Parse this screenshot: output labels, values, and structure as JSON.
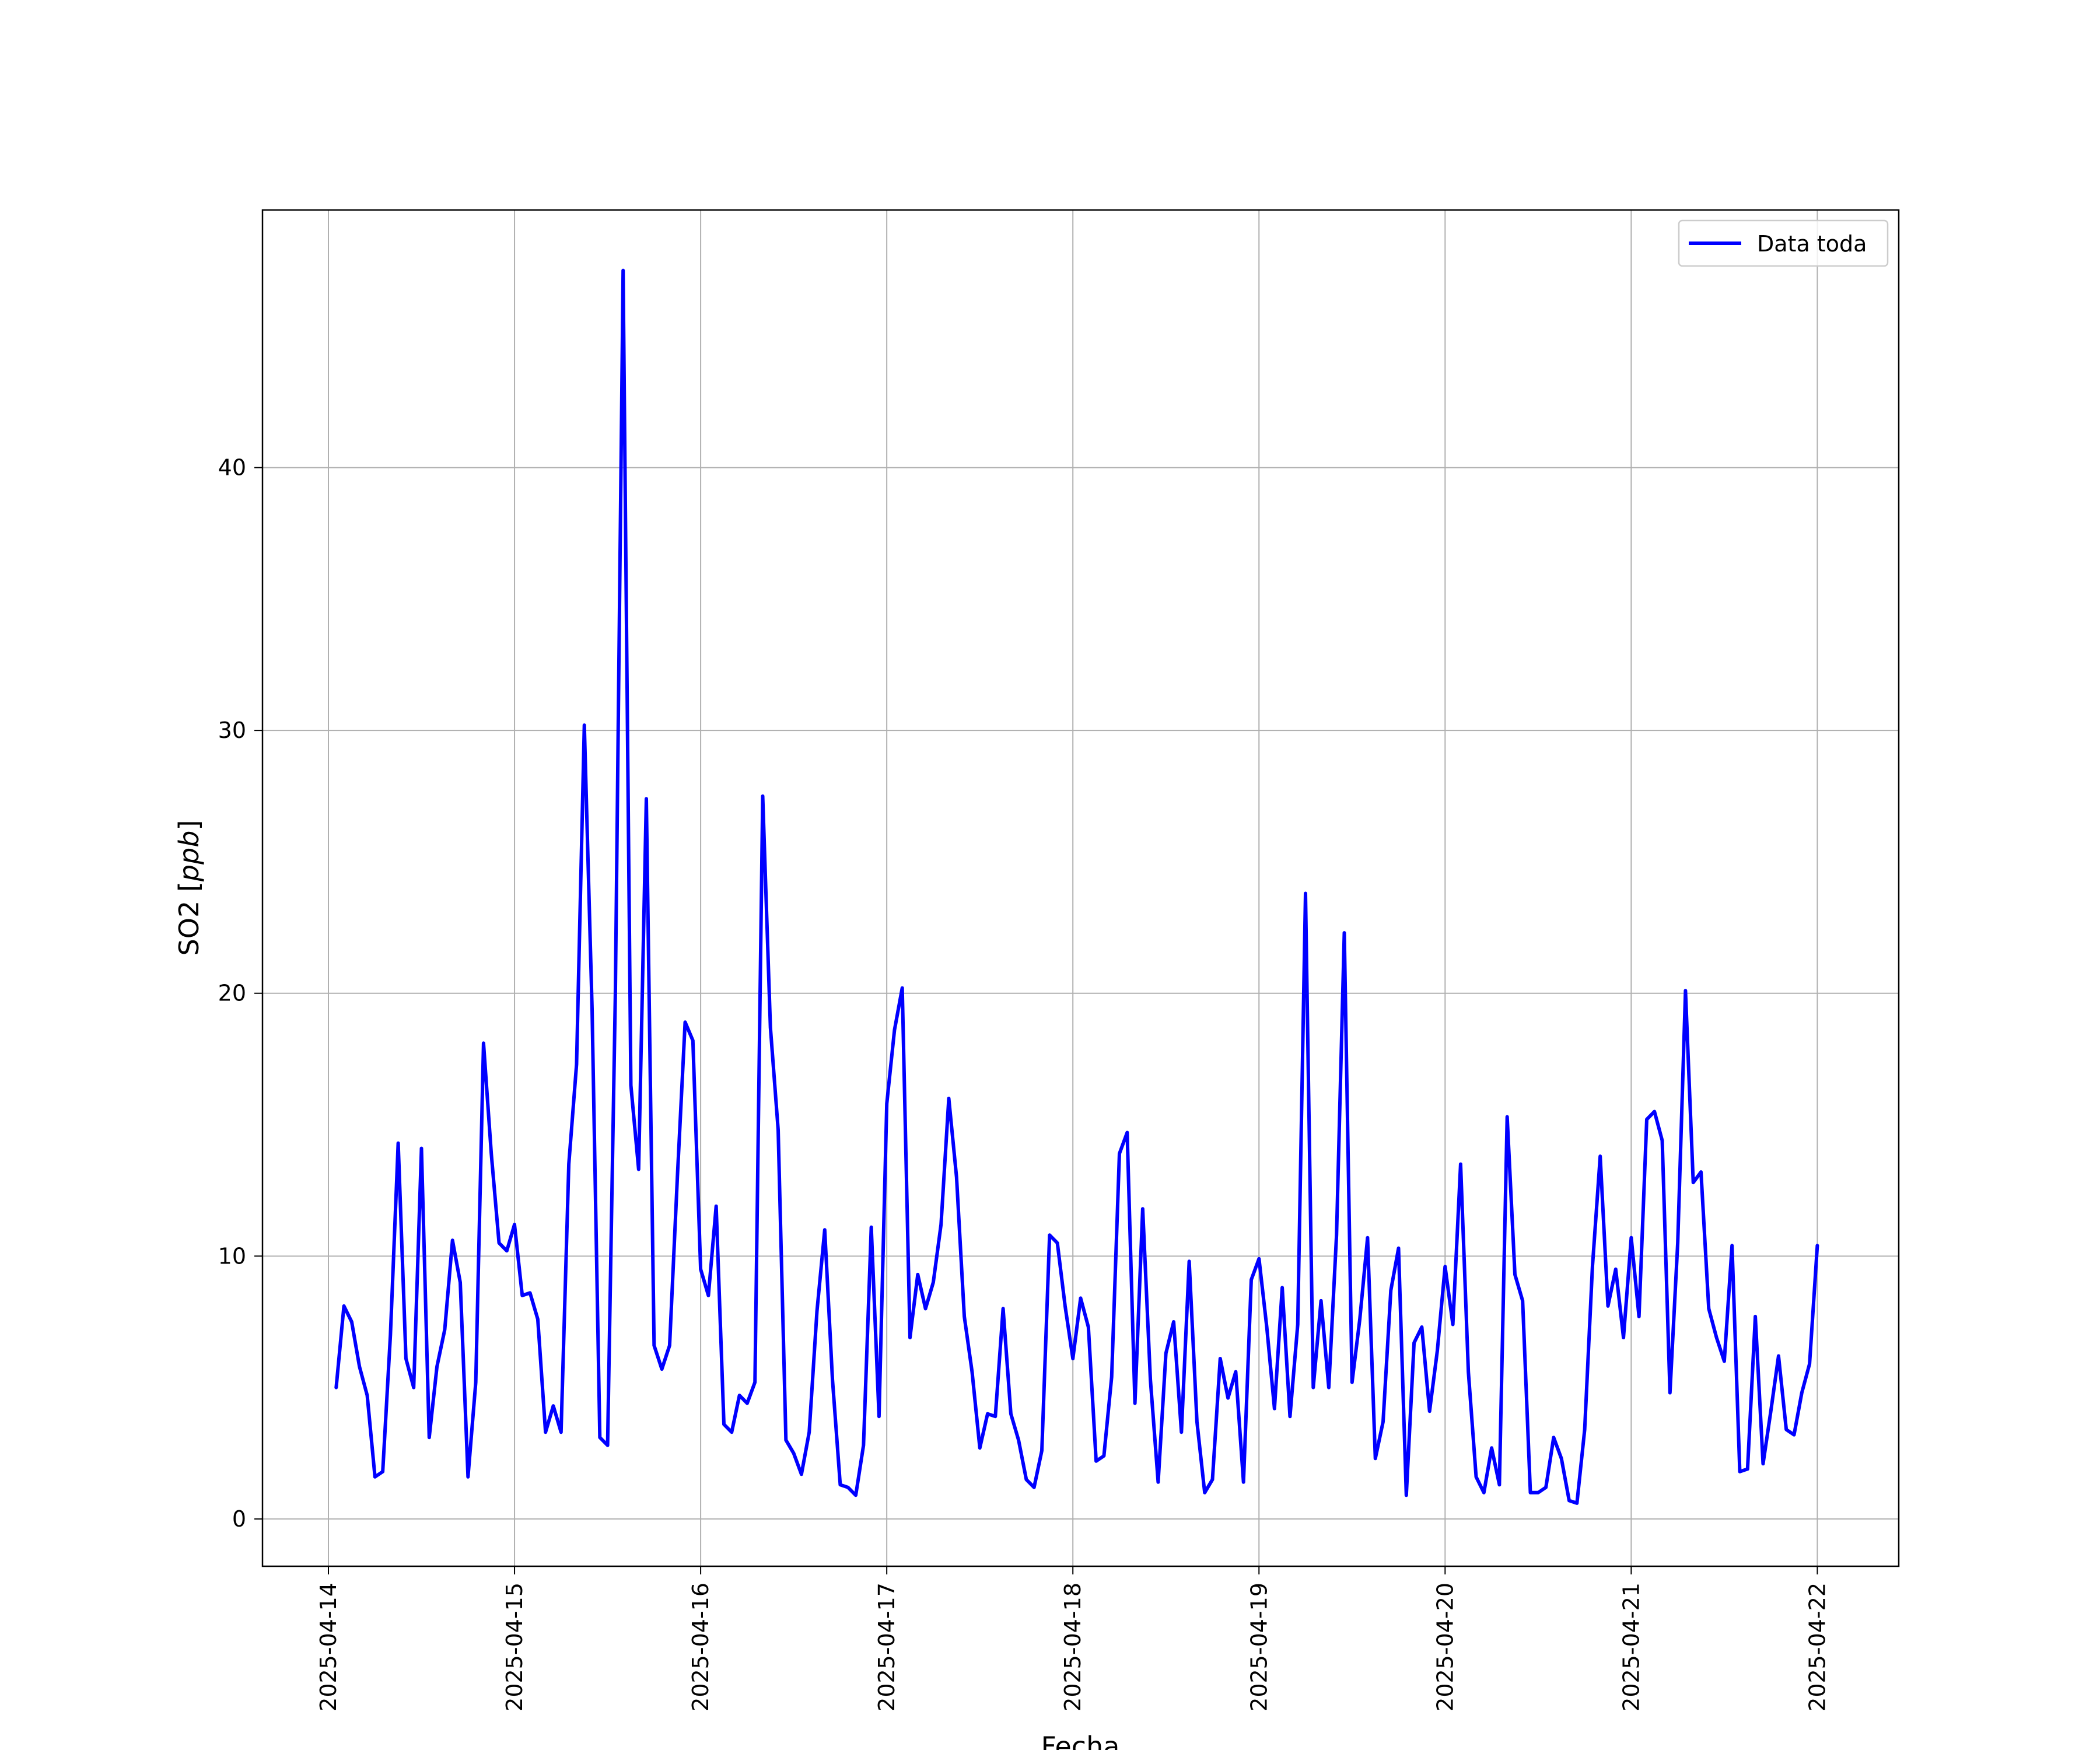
{
  "chart_data": {
    "type": "line",
    "xlabel": "Fecha",
    "ylabel_main": "SO2 [",
    "ylabel_unit": "ppb",
    "ylabel_close": "]",
    "xlim": [
      "2025-04-13T15:30",
      "2025-04-22T10:30"
    ],
    "ylim": [
      -1.8,
      49.8
    ],
    "x_ticks": [
      "2025-04-14",
      "2025-04-15",
      "2025-04-16",
      "2025-04-17",
      "2025-04-18",
      "2025-04-19",
      "2025-04-20",
      "2025-04-21",
      "2025-04-22"
    ],
    "y_ticks": [
      0,
      10,
      20,
      30,
      40
    ],
    "grid": true,
    "legend_position": "top-right",
    "line_color": "#0000ff",
    "series": [
      {
        "name": "Data toda",
        "color": "#0000ff",
        "x": [
          "2025-04-14T01:00",
          "2025-04-14T02:00",
          "2025-04-14T03:00",
          "2025-04-14T04:00",
          "2025-04-14T05:00",
          "2025-04-14T06:00",
          "2025-04-14T07:00",
          "2025-04-14T08:00",
          "2025-04-14T09:00",
          "2025-04-14T10:00",
          "2025-04-14T11:00",
          "2025-04-14T12:00",
          "2025-04-14T13:00",
          "2025-04-14T14:00",
          "2025-04-14T15:00",
          "2025-04-14T16:00",
          "2025-04-14T17:00",
          "2025-04-14T18:00",
          "2025-04-14T19:00",
          "2025-04-14T20:00",
          "2025-04-14T21:00",
          "2025-04-14T22:00",
          "2025-04-14T23:00",
          "2025-04-15T00:00",
          "2025-04-15T01:00",
          "2025-04-15T02:00",
          "2025-04-15T03:00",
          "2025-04-15T04:00",
          "2025-04-15T05:00",
          "2025-04-15T06:00",
          "2025-04-15T07:00",
          "2025-04-15T08:00",
          "2025-04-15T09:00",
          "2025-04-15T10:00",
          "2025-04-15T11:00",
          "2025-04-15T12:00",
          "2025-04-15T13:00",
          "2025-04-15T14:00",
          "2025-04-15T15:00",
          "2025-04-15T16:00",
          "2025-04-15T17:00",
          "2025-04-15T18:00",
          "2025-04-15T19:00",
          "2025-04-15T20:00",
          "2025-04-15T21:00",
          "2025-04-15T22:00",
          "2025-04-15T23:00",
          "2025-04-16T00:00",
          "2025-04-16T01:00",
          "2025-04-16T02:00",
          "2025-04-16T03:00",
          "2025-04-16T04:00",
          "2025-04-16T05:00",
          "2025-04-16T06:00",
          "2025-04-16T07:00",
          "2025-04-16T08:00",
          "2025-04-16T09:00",
          "2025-04-16T10:00",
          "2025-04-16T11:00",
          "2025-04-16T12:00",
          "2025-04-16T13:00",
          "2025-04-16T14:00",
          "2025-04-16T15:00",
          "2025-04-16T16:00",
          "2025-04-16T17:00",
          "2025-04-16T18:00",
          "2025-04-16T19:00",
          "2025-04-16T20:00",
          "2025-04-16T21:00",
          "2025-04-16T22:00",
          "2025-04-16T23:00",
          "2025-04-17T00:00",
          "2025-04-17T01:00",
          "2025-04-17T02:00",
          "2025-04-17T03:00",
          "2025-04-17T04:00",
          "2025-04-17T05:00",
          "2025-04-17T06:00",
          "2025-04-17T07:00",
          "2025-04-17T08:00",
          "2025-04-17T09:00",
          "2025-04-17T10:00",
          "2025-04-17T11:00",
          "2025-04-17T12:00",
          "2025-04-17T13:00",
          "2025-04-17T14:00",
          "2025-04-17T15:00",
          "2025-04-17T16:00",
          "2025-04-17T17:00",
          "2025-04-17T18:00",
          "2025-04-17T19:00",
          "2025-04-17T20:00",
          "2025-04-17T21:00",
          "2025-04-17T22:00",
          "2025-04-17T23:00",
          "2025-04-18T00:00",
          "2025-04-18T01:00",
          "2025-04-18T02:00",
          "2025-04-18T03:00",
          "2025-04-18T04:00",
          "2025-04-18T05:00",
          "2025-04-18T06:00",
          "2025-04-18T07:00",
          "2025-04-18T08:00",
          "2025-04-18T09:00",
          "2025-04-18T10:00",
          "2025-04-18T11:00",
          "2025-04-18T12:00",
          "2025-04-18T13:00",
          "2025-04-18T14:00",
          "2025-04-18T15:00",
          "2025-04-18T16:00",
          "2025-04-18T17:00",
          "2025-04-18T18:00",
          "2025-04-18T19:00",
          "2025-04-18T20:00",
          "2025-04-18T21:00",
          "2025-04-18T22:00",
          "2025-04-18T23:00",
          "2025-04-19T00:00",
          "2025-04-19T01:00",
          "2025-04-19T02:00",
          "2025-04-19T03:00",
          "2025-04-19T04:00",
          "2025-04-19T05:00",
          "2025-04-19T06:00",
          "2025-04-19T07:00",
          "2025-04-19T08:00",
          "2025-04-19T09:00",
          "2025-04-19T10:00",
          "2025-04-19T11:00",
          "2025-04-19T12:00",
          "2025-04-19T13:00",
          "2025-04-19T14:00",
          "2025-04-19T15:00",
          "2025-04-19T16:00",
          "2025-04-19T17:00",
          "2025-04-19T18:00",
          "2025-04-19T19:00",
          "2025-04-19T20:00",
          "2025-04-19T21:00",
          "2025-04-19T22:00",
          "2025-04-19T23:00",
          "2025-04-20T00:00",
          "2025-04-20T01:00",
          "2025-04-20T02:00",
          "2025-04-20T03:00",
          "2025-04-20T04:00",
          "2025-04-20T05:00",
          "2025-04-20T06:00",
          "2025-04-20T07:00",
          "2025-04-20T08:00",
          "2025-04-20T09:00",
          "2025-04-20T10:00",
          "2025-04-20T11:00",
          "2025-04-20T12:00",
          "2025-04-20T13:00",
          "2025-04-20T14:00",
          "2025-04-20T15:00",
          "2025-04-20T16:00",
          "2025-04-20T17:00",
          "2025-04-20T18:00",
          "2025-04-20T19:00",
          "2025-04-20T20:00",
          "2025-04-20T21:00",
          "2025-04-20T22:00",
          "2025-04-20T23:00",
          "2025-04-21T00:00",
          "2025-04-21T01:00",
          "2025-04-21T02:00",
          "2025-04-21T03:00",
          "2025-04-21T04:00",
          "2025-04-21T05:00",
          "2025-04-21T06:00",
          "2025-04-21T07:00",
          "2025-04-21T08:00",
          "2025-04-21T09:00",
          "2025-04-21T10:00",
          "2025-04-21T11:00",
          "2025-04-21T12:00",
          "2025-04-21T13:00",
          "2025-04-21T14:00",
          "2025-04-21T15:00",
          "2025-04-21T16:00",
          "2025-04-21T17:00",
          "2025-04-21T18:00",
          "2025-04-21T19:00",
          "2025-04-21T20:00",
          "2025-04-21T21:00",
          "2025-04-21T22:00",
          "2025-04-21T23:00",
          "2025-04-22T00:00"
        ],
        "y": [
          5.0,
          8.1,
          7.5,
          5.8,
          4.7,
          1.6,
          1.8,
          7.0,
          14.3,
          6.1,
          5.0,
          14.1,
          3.1,
          5.8,
          7.2,
          10.6,
          9.0,
          1.6,
          5.2,
          18.1,
          13.9,
          10.5,
          10.2,
          11.2,
          8.5,
          8.6,
          7.6,
          3.3,
          4.3,
          3.3,
          13.5,
          17.3,
          30.2,
          19.4,
          3.1,
          2.8,
          20.0,
          47.5,
          16.5,
          13.3,
          27.4,
          6.6,
          5.7,
          6.6,
          13.0,
          18.9,
          18.2,
          9.5,
          8.5,
          11.9,
          3.6,
          3.3,
          4.7,
          4.4,
          5.2,
          27.5,
          18.7,
          14.8,
          3.0,
          2.5,
          1.7,
          3.3,
          7.9,
          11.0,
          5.3,
          1.3,
          1.2,
          0.9,
          2.8,
          11.1,
          3.9,
          15.8,
          18.6,
          20.2,
          6.9,
          9.3,
          8.0,
          9.0,
          11.2,
          16.0,
          13.0,
          7.7,
          5.6,
          2.7,
          4.0,
          3.9,
          8.0,
          4.0,
          3.0,
          1.5,
          1.2,
          2.6,
          10.8,
          10.5,
          8.1,
          6.1,
          8.4,
          7.3,
          2.2,
          2.4,
          5.4,
          13.9,
          14.7,
          4.4,
          11.8,
          5.3,
          1.4,
          6.3,
          7.5,
          3.3,
          9.8,
          3.7,
          1.0,
          1.5,
          6.1,
          4.6,
          5.6,
          1.4,
          9.1,
          9.9,
          7.3,
          4.2,
          8.8,
          3.9,
          7.4,
          23.8,
          5.0,
          8.3,
          5.0,
          10.8,
          22.3,
          5.2,
          7.6,
          10.7,
          2.3,
          3.7,
          8.7,
          10.3,
          0.9,
          6.7,
          7.3,
          4.1,
          6.4,
          9.6,
          7.4,
          13.5,
          5.6,
          1.6,
          1.0,
          2.7,
          1.3,
          15.3,
          9.3,
          8.3,
          1.0,
          1.0,
          1.2,
          3.1,
          2.3,
          0.7,
          0.6,
          3.4,
          9.6,
          13.8,
          8.1,
          9.5,
          6.9,
          10.7,
          7.7,
          15.2,
          15.5,
          14.4,
          4.8,
          10.5,
          20.1,
          12.8,
          13.2,
          8.0,
          6.9,
          6.0,
          10.4,
          1.8,
          1.9,
          7.7,
          2.1,
          4.1,
          6.2,
          3.4,
          3.2,
          4.8,
          5.9,
          10.4
        ]
      }
    ]
  }
}
